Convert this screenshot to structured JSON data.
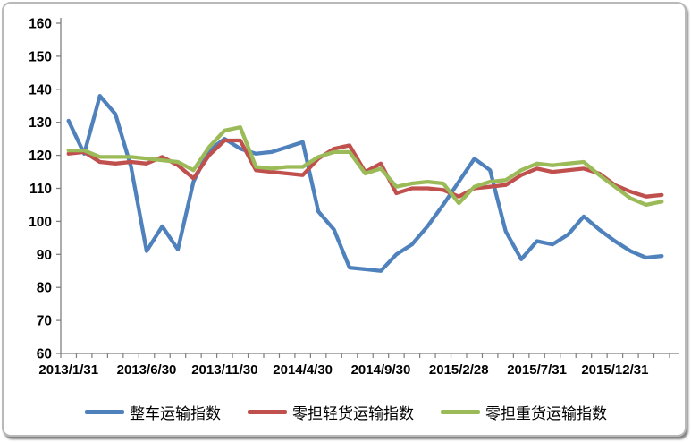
{
  "chart_data": {
    "type": "line",
    "title": "",
    "xlabel": "",
    "ylabel": "",
    "ylim": [
      60,
      160
    ],
    "ytick_step": 10,
    "y_tick_labels": [
      "60",
      "70",
      "80",
      "90",
      "100",
      "110",
      "120",
      "130",
      "140",
      "150",
      "160"
    ],
    "grid": false,
    "legend_position": "bottom",
    "n_points": 39,
    "x_start": "2013/1/31",
    "x_frequency": "monthly",
    "x_label_indices": [
      0,
      5,
      10,
      15,
      20,
      25,
      30,
      35
    ],
    "x_labels": [
      "2013/1/31",
      "2013/6/30",
      "2013/11/30",
      "2014/4/30",
      "2014/9/30",
      "2015/2/28",
      "2015/7/31",
      "2015/12/31"
    ],
    "axis_color": "#7f7f7f",
    "series": [
      {
        "name": "整车运输指数",
        "color": "#4F81BD",
        "values": [
          130.5,
          120.5,
          138,
          132.5,
          116.5,
          91,
          98.5,
          91.5,
          112,
          121.5,
          125,
          122,
          120.5,
          121,
          122.5,
          124,
          103,
          97.5,
          86,
          85.5,
          85,
          90,
          93,
          98.5,
          105,
          112,
          119,
          115.5,
          97,
          88.5,
          94,
          93,
          96,
          101.5,
          97.5,
          94,
          91,
          89,
          89.5
        ]
      },
      {
        "name": "零担轻货运输指数",
        "color": "#C0504D",
        "values": [
          120.5,
          121,
          118,
          117.5,
          118,
          117.5,
          119.5,
          117,
          113,
          120,
          124.5,
          124.5,
          115.5,
          115,
          114.5,
          114,
          119,
          122,
          123,
          115,
          117.5,
          108.5,
          110,
          110,
          109.5,
          107.5,
          110,
          110.5,
          111,
          114,
          116,
          115,
          115.5,
          116,
          114.5,
          111,
          109,
          107.5,
          108
        ]
      },
      {
        "name": "零担重货运输指数",
        "color": "#9BBB59",
        "values": [
          121.5,
          121.5,
          119.5,
          119.5,
          119.5,
          119,
          118.5,
          118,
          115.5,
          122.5,
          127.5,
          128.5,
          116.5,
          116,
          116.5,
          116.5,
          119.5,
          121,
          121,
          114.5,
          116,
          110.5,
          111.5,
          112,
          111.5,
          105.5,
          110.5,
          112,
          112.5,
          115.5,
          117.5,
          117,
          117.5,
          118,
          114,
          110.5,
          107,
          105,
          106
        ]
      }
    ]
  }
}
